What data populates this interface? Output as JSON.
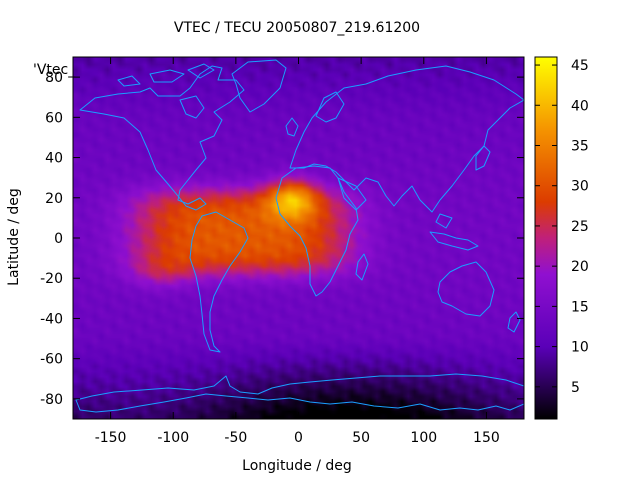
{
  "chart_data": {
    "type": "heatmap",
    "title": "VTEC / TECU 20050807_219.61200",
    "xlabel": "Longitude / deg",
    "ylabel": "Latitude / deg",
    "series_key": "'Vtec_",
    "xlim": [
      -180,
      180
    ],
    "ylim": [
      -90,
      90
    ],
    "x_ticks": [
      -150,
      -100,
      -50,
      0,
      50,
      100,
      150
    ],
    "y_ticks": [
      -80,
      -60,
      -40,
      -20,
      0,
      20,
      40,
      60,
      80
    ],
    "x_tick_labels": [
      "-150",
      "-100",
      "-50",
      "0",
      "50",
      "100",
      "150"
    ],
    "y_tick_labels": [
      "-80",
      "-60",
      "-40",
      "-20",
      "0",
      "20",
      "40",
      "60",
      "80"
    ],
    "colorbar": {
      "range": [
        1,
        46
      ],
      "ticks": [
        5,
        10,
        15,
        20,
        25,
        30,
        35,
        40,
        45
      ],
      "tick_labels": [
        "5",
        "10",
        "15",
        "20",
        "25",
        "30",
        "35",
        "40",
        "45"
      ],
      "palette": "black-purple-red-orange-yellow"
    },
    "field_features": [
      {
        "feature": "equatorial anomaly crest (peak)",
        "lon": -5,
        "lat": 20,
        "value": 44
      },
      {
        "feature": "equatorial belt",
        "lon_range": [
          -140,
          50
        ],
        "lat_range": [
          -25,
          30
        ],
        "value": 28
      },
      {
        "feature": "background mid latitudes",
        "value": 11
      },
      {
        "feature": "southern polar minimum",
        "lon": 40,
        "lat": -85,
        "value": 2
      }
    ]
  }
}
